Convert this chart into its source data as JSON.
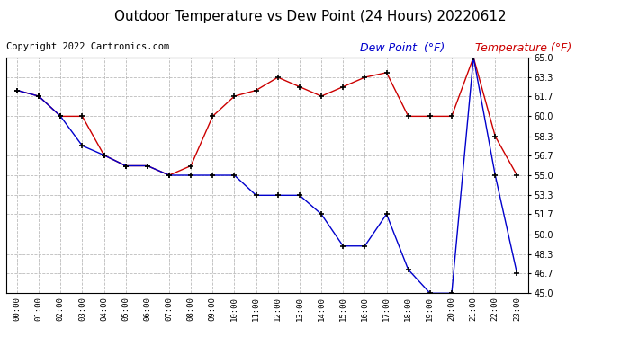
{
  "title": "Outdoor Temperature vs Dew Point (24 Hours) 20220612",
  "copyright": "Copyright 2022 Cartronics.com",
  "legend_dew": "Dew Point  (°F)",
  "legend_temp": "Temperature (°F)",
  "x_labels": [
    "00:00",
    "01:00",
    "02:00",
    "03:00",
    "04:00",
    "05:00",
    "06:00",
    "07:00",
    "08:00",
    "09:00",
    "10:00",
    "11:00",
    "12:00",
    "13:00",
    "14:00",
    "15:00",
    "16:00",
    "17:00",
    "18:00",
    "19:00",
    "20:00",
    "21:00",
    "22:00",
    "23:00"
  ],
  "temp_x": [
    0,
    1,
    2,
    3,
    4,
    5,
    6,
    7,
    8,
    9,
    10,
    11,
    12,
    13,
    14,
    15,
    16,
    17,
    18,
    19,
    20,
    21,
    22,
    23
  ],
  "temp_y": [
    62.2,
    61.7,
    60.0,
    60.0,
    56.7,
    55.8,
    55.8,
    55.0,
    55.8,
    60.0,
    61.7,
    62.2,
    63.3,
    62.5,
    61.7,
    62.5,
    63.3,
    63.7,
    60.0,
    60.0,
    60.0,
    65.0,
    58.3,
    55.0
  ],
  "dew_x": [
    0,
    1,
    2,
    3,
    4,
    5,
    6,
    7,
    8,
    9,
    10,
    11,
    12,
    13,
    14,
    15,
    16,
    17,
    18,
    19,
    20,
    21,
    22,
    23
  ],
  "dew_y": [
    62.2,
    61.7,
    60.0,
    57.5,
    56.7,
    55.8,
    55.8,
    55.0,
    55.0,
    55.0,
    55.0,
    53.3,
    53.3,
    53.3,
    51.7,
    49.0,
    49.0,
    51.7,
    47.0,
    45.0,
    45.0,
    65.0,
    55.0,
    46.7
  ],
  "ylim": [
    45.0,
    65.0
  ],
  "yticks": [
    45.0,
    46.7,
    48.3,
    50.0,
    51.7,
    53.3,
    55.0,
    56.7,
    58.3,
    60.0,
    61.7,
    63.3,
    65.0
  ],
  "temp_color": "#cc0000",
  "dew_color": "#0000cc",
  "background_color": "#ffffff",
  "grid_color": "#bbbbbb",
  "title_fontsize": 11,
  "copyright_fontsize": 7.5,
  "legend_fontsize": 9
}
